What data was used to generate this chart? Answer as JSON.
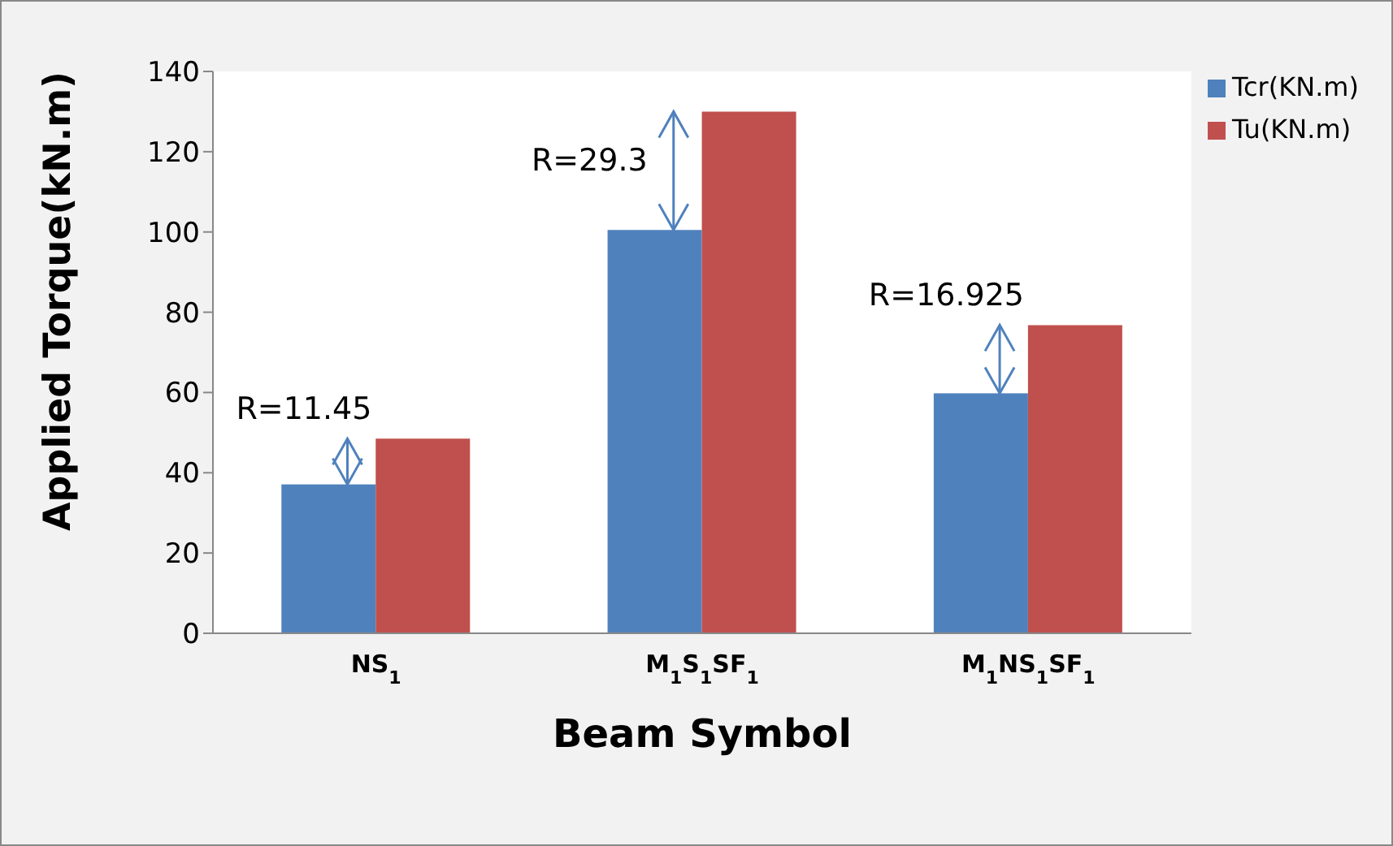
{
  "chart_data": {
    "type": "bar",
    "xlabel": "Beam Symbol",
    "ylabel": "Applied Torque(kN.m)",
    "categories": [
      "NS$_{1}$",
      "M$_{1}$S$_{1}$SF$_{1}$",
      "M$_{1}$NS$_{1}$SF$_{1}$"
    ],
    "series": [
      {
        "name": "Tcr(KN.m)",
        "color": "#4f81bd",
        "values": [
          37.1,
          100.5,
          59.8
        ]
      },
      {
        "name": "Tu(KN.m)",
        "color": "#c0504d",
        "values": [
          48.5,
          130,
          76.8
        ]
      }
    ],
    "ylim": [
      0,
      140
    ],
    "yticks": [
      0,
      20,
      40,
      60,
      80,
      100,
      120,
      140
    ],
    "legend": "right",
    "annotations": [
      {
        "text": "R=11.45",
        "x": "NS$_{1}$",
        "y": 48.5
      },
      {
        "text": "R=29.3",
        "x": "M$_{1}$S$_{1}$SF$_{1}$",
        "y": 130
      },
      {
        "text": "R=16.925",
        "x": "M$_{1}$NS$_{1}$SF$_{1}$",
        "y": 76.8
      }
    ]
  }
}
